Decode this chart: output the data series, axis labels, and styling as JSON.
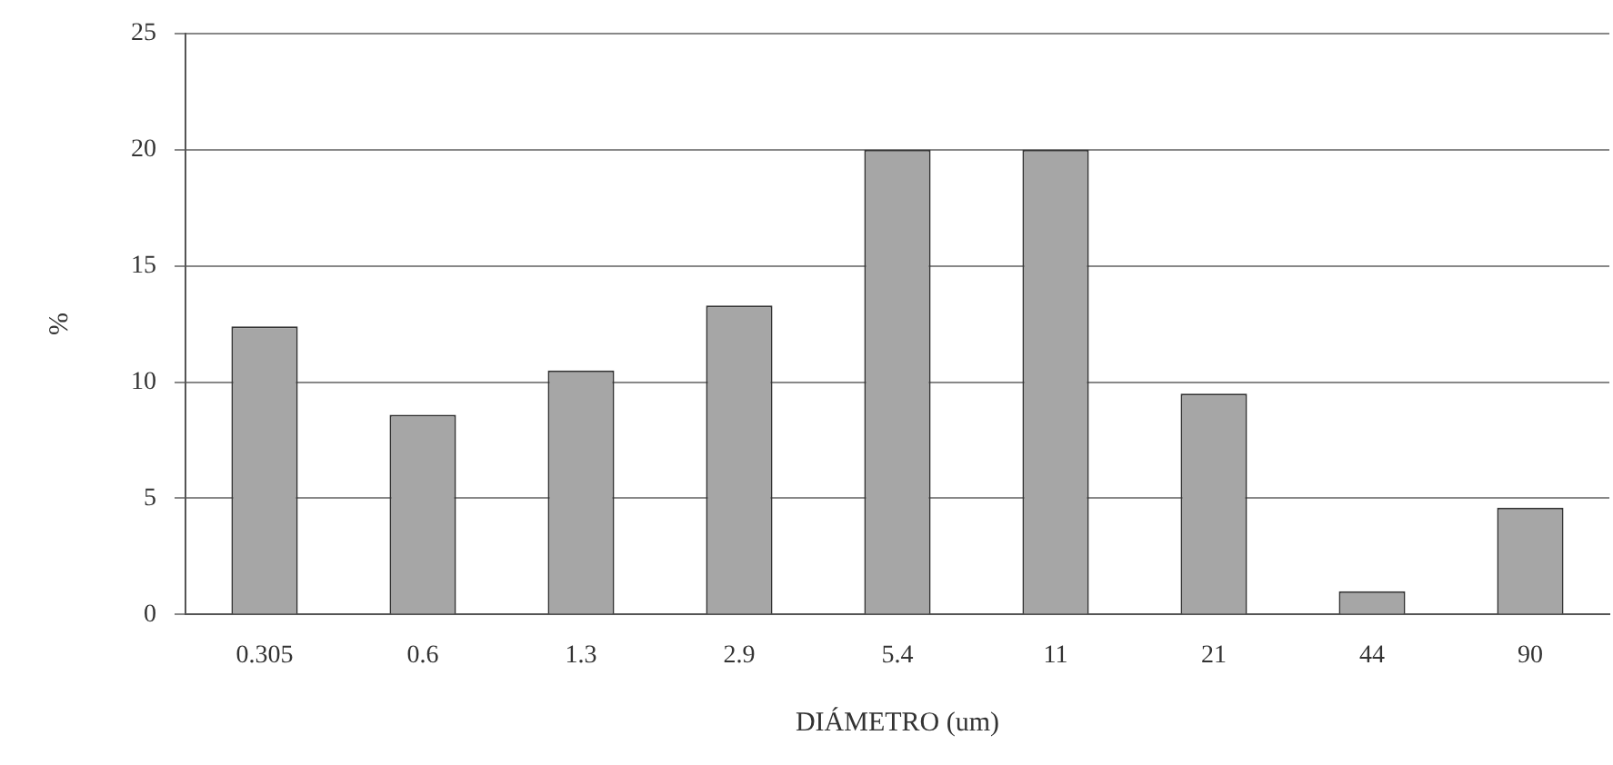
{
  "chart_data": {
    "type": "bar",
    "xlabel": "DIÁMETRO (um)",
    "ylabel": "%",
    "categories": [
      "0.305",
      "0.6",
      "1.3",
      "2.9",
      "5.4",
      "11",
      "21",
      "44",
      "90"
    ],
    "values": [
      12.4,
      8.6,
      10.5,
      13.3,
      20,
      20,
      9.5,
      1,
      4.6
    ],
    "color": "#a6a6a6",
    "ylim": [
      0,
      25
    ],
    "yticks": [
      0,
      5,
      10,
      15,
      20,
      25
    ],
    "grid": "y",
    "legend": false
  }
}
